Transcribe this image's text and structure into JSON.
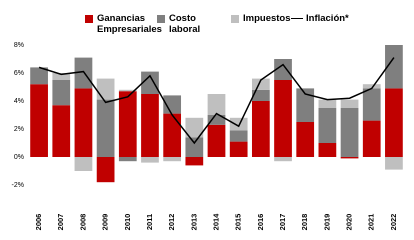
{
  "chart_data": {
    "type": "stacked-bar-line",
    "categories": [
      "2006",
      "2007",
      "2008",
      "2009",
      "2010",
      "2011",
      "2012",
      "2013",
      "2014",
      "2015",
      "2016",
      "2017",
      "2018",
      "2019",
      "2020",
      "2021",
      "2022"
    ],
    "series": [
      {
        "name": "Ganancias Empresariales",
        "color": "#c00000",
        "type": "bar",
        "values": [
          5.2,
          3.7,
          4.9,
          -1.8,
          4.7,
          4.5,
          3.1,
          -0.6,
          2.3,
          1.1,
          4.0,
          5.5,
          2.5,
          1.0,
          -0.1,
          2.6,
          4.9
        ]
      },
      {
        "name": "Costo laboral",
        "color": "#7f7f7f",
        "type": "bar",
        "values": [
          1.2,
          1.8,
          2.2,
          4.1,
          -0.3,
          1.6,
          1.3,
          1.4,
          0.7,
          0.8,
          0.8,
          1.5,
          2.4,
          2.5,
          3.5,
          2.3,
          3.1
        ]
      },
      {
        "name": "Impuestos",
        "color": "#bfbfbf",
        "type": "bar",
        "values": [
          0,
          0.5,
          -1.0,
          1.5,
          0.1,
          -0.4,
          -0.3,
          1.4,
          1.5,
          0.9,
          0.8,
          -0.3,
          0,
          0.6,
          0.6,
          0.3,
          -0.9
        ]
      },
      {
        "name": "Inflación*",
        "color": "#000000",
        "type": "line",
        "values": [
          6.4,
          5.9,
          6.1,
          3.9,
          4.3,
          5.8,
          3.0,
          1.0,
          3.1,
          2.2,
          5.5,
          6.6,
          4.5,
          4.1,
          4.2,
          4.9,
          7.1
        ]
      }
    ],
    "ylim": [
      -2,
      8
    ],
    "yticks": [
      {
        "value": -2,
        "label": "-2%"
      },
      {
        "value": 0,
        "label": "0%"
      },
      {
        "value": 2,
        "label": "2%"
      },
      {
        "value": 4,
        "label": "4%"
      },
      {
        "value": 6,
        "label": "6%"
      },
      {
        "value": 8,
        "label": "8%"
      }
    ],
    "grid": false
  }
}
